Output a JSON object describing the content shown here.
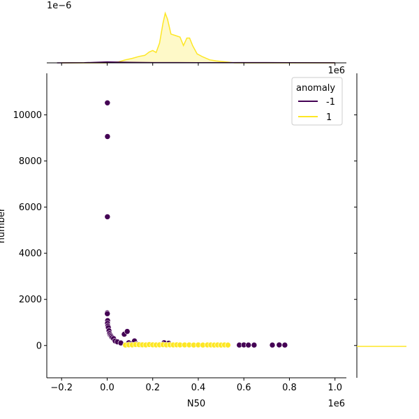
{
  "chart_data": {
    "type": "scatter",
    "xlabel": "N50",
    "ylabel": "number",
    "x_offset_label": "1e6",
    "y_offset_label": "",
    "xlim": [
      -265000,
      1050000
    ],
    "ylim": [
      -1400,
      11800
    ],
    "x_ticks": [
      -200000,
      0,
      200000,
      400000,
      600000,
      800000,
      1000000
    ],
    "x_tick_labels": [
      "−0.2",
      "0.0",
      "0.2",
      "0.4",
      "0.6",
      "0.8",
      "1.0"
    ],
    "y_ticks": [
      0,
      2000,
      4000,
      6000,
      8000,
      10000
    ],
    "y_tick_labels": [
      "0",
      "2000",
      "4000",
      "6000",
      "8000",
      "10000"
    ],
    "grid": false,
    "legend": {
      "title": "anomaly",
      "position": "top-right",
      "entries": [
        {
          "label": "-1",
          "color": "#440154"
        },
        {
          "label": "1",
          "color": "#fde725"
        }
      ]
    },
    "series": [
      {
        "name": "-1",
        "color": "#440154",
        "points": [
          [
            1000,
            10520
          ],
          [
            1500,
            9060
          ],
          [
            1200,
            5580
          ],
          [
            500,
            1420
          ],
          [
            800,
            1380
          ],
          [
            2000,
            1080
          ],
          [
            1500,
            960
          ],
          [
            3000,
            850
          ],
          [
            5000,
            780
          ],
          [
            8000,
            640
          ],
          [
            11000,
            520
          ],
          [
            14000,
            450
          ],
          [
            18000,
            400
          ],
          [
            22000,
            350
          ],
          [
            28000,
            300
          ],
          [
            35000,
            200
          ],
          [
            45000,
            160
          ],
          [
            60000,
            110
          ],
          [
            75000,
            490
          ],
          [
            88000,
            610
          ],
          [
            95000,
            120
          ],
          [
            110000,
            90
          ],
          [
            120000,
            200
          ],
          [
            130000,
            60
          ],
          [
            150000,
            30
          ],
          [
            250000,
            120
          ],
          [
            270000,
            100
          ],
          [
            580000,
            20
          ],
          [
            600000,
            25
          ],
          [
            620000,
            20
          ],
          [
            645000,
            20
          ],
          [
            725000,
            20
          ],
          [
            755000,
            25
          ],
          [
            780000,
            20
          ]
        ]
      },
      {
        "name": "1",
        "color": "#fde725",
        "points": [
          [
            80000,
            20
          ],
          [
            95000,
            30
          ],
          [
            110000,
            25
          ],
          [
            125000,
            40
          ],
          [
            140000,
            35
          ],
          [
            155000,
            30
          ],
          [
            170000,
            25
          ],
          [
            185000,
            40
          ],
          [
            200000,
            30
          ],
          [
            215000,
            25
          ],
          [
            230000,
            30
          ],
          [
            245000,
            35
          ],
          [
            260000,
            25
          ],
          [
            275000,
            30
          ],
          [
            290000,
            25
          ],
          [
            305000,
            30
          ],
          [
            320000,
            25
          ],
          [
            340000,
            25
          ],
          [
            360000,
            25
          ],
          [
            380000,
            20
          ],
          [
            400000,
            25
          ],
          [
            420000,
            20
          ],
          [
            440000,
            25
          ],
          [
            455000,
            25
          ],
          [
            470000,
            20
          ],
          [
            485000,
            25
          ],
          [
            500000,
            20
          ],
          [
            515000,
            25
          ],
          [
            530000,
            20
          ]
        ]
      }
    ],
    "top_marginal": {
      "type": "kde",
      "offset_label": "1e−6",
      "ylim": [
        0,
        1.0
      ],
      "curves": [
        {
          "name": "1",
          "color": "#fde725",
          "fill": true,
          "points": [
            [
              -200000,
              0
            ],
            [
              0,
              0.0
            ],
            [
              50000,
              0.02
            ],
            [
              80000,
              0.06
            ],
            [
              110000,
              0.09
            ],
            [
              140000,
              0.13
            ],
            [
              165000,
              0.15
            ],
            [
              185000,
              0.22
            ],
            [
              200000,
              0.25
            ],
            [
              215000,
              0.21
            ],
            [
              230000,
              0.4
            ],
            [
              245000,
              0.8
            ],
            [
              255000,
              1.0
            ],
            [
              265000,
              0.88
            ],
            [
              280000,
              0.58
            ],
            [
              300000,
              0.55
            ],
            [
              320000,
              0.52
            ],
            [
              335000,
              0.35
            ],
            [
              350000,
              0.5
            ],
            [
              362000,
              0.5
            ],
            [
              375000,
              0.35
            ],
            [
              395000,
              0.18
            ],
            [
              420000,
              0.12
            ],
            [
              450000,
              0.06
            ],
            [
              480000,
              0.04
            ],
            [
              520000,
              0.02
            ],
            [
              560000,
              0.0
            ],
            [
              1000000,
              0
            ]
          ]
        },
        {
          "name": "-1",
          "color": "#440154",
          "fill": true,
          "points": [
            [
              -220000,
              0
            ],
            [
              -100000,
              0.003
            ],
            [
              0,
              0.02
            ],
            [
              100000,
              0.01
            ],
            [
              200000,
              0.006
            ],
            [
              400000,
              0.004
            ],
            [
              600000,
              0.005
            ],
            [
              800000,
              0.004
            ],
            [
              1000000,
              0.001
            ]
          ]
        }
      ]
    },
    "right_marginal": {
      "type": "kde",
      "curves": [
        {
          "name": "1",
          "color": "#fde725"
        }
      ]
    }
  }
}
